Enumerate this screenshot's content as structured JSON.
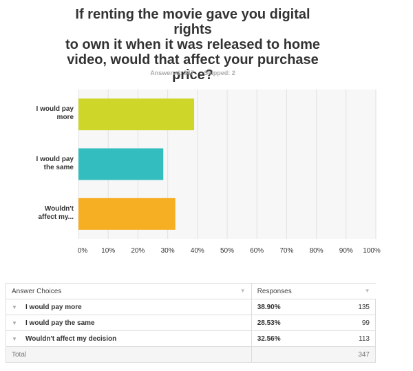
{
  "chart_data": {
    "type": "bar",
    "orientation": "horizontal",
    "title_lines": [
      "If renting the movie gave you digital rights",
      "to own it when it was released to home",
      "video, would that affect your purchase",
      "price?"
    ],
    "answered": "Answered: 347",
    "skipped": "Skipped: 2",
    "categories": [
      [
        "I would pay",
        "more"
      ],
      [
        "I would pay",
        "the same"
      ],
      [
        "Wouldn't",
        "affect my..."
      ]
    ],
    "values": [
      38.9,
      28.53,
      32.56
    ],
    "colors": [
      "#cfd62a",
      "#33bdbf",
      "#f6ae22"
    ],
    "xlim": [
      0,
      100
    ],
    "xticks": [
      "0%",
      "10%",
      "20%",
      "30%",
      "40%",
      "50%",
      "60%",
      "70%",
      "80%",
      "90%",
      "100%"
    ],
    "grid": true
  },
  "table": {
    "headers": {
      "choices": "Answer Choices",
      "responses": "Responses"
    },
    "rows": [
      {
        "label": "I would pay more",
        "percent": "38.90%",
        "count": "135"
      },
      {
        "label": "I would pay the same",
        "percent": "28.53%",
        "count": "99"
      },
      {
        "label": "Wouldn't affect my decision",
        "percent": "32.56%",
        "count": "113"
      }
    ],
    "total": {
      "label": "Total",
      "count": "347"
    }
  },
  "icons": {
    "row_toggle": "triangle-down-icon",
    "sort": "sort-icon"
  }
}
